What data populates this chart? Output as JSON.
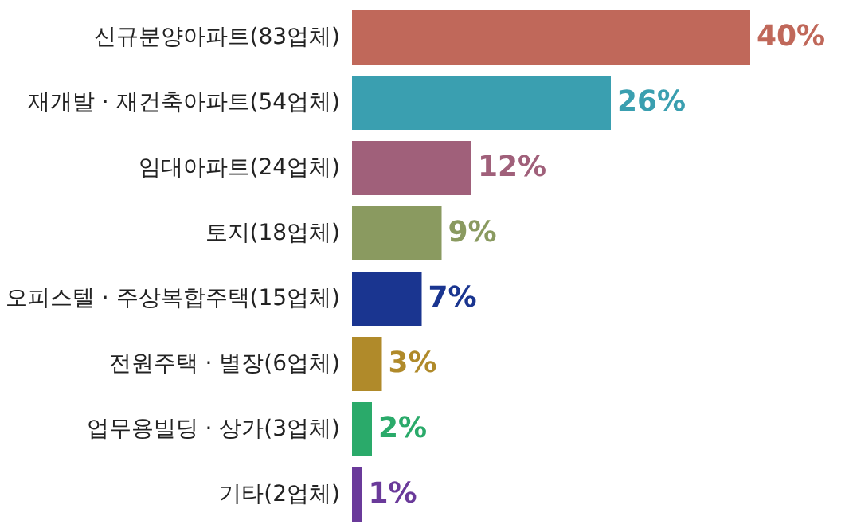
{
  "chart_data": {
    "type": "bar",
    "orientation": "horizontal",
    "categories": [
      "신규분양아파트(83업체)",
      "재개발 · 재건축아파트(54업체)",
      "임대아파트(24업체)",
      "토지(18업체)",
      "오피스텔 · 주상복합주택(15업체)",
      "전원주택 · 별장(6업체)",
      "업무용빌딩 · 상가(3업체)",
      "기타(2업체)"
    ],
    "values": [
      40,
      26,
      12,
      9,
      7,
      3,
      2,
      1
    ],
    "value_labels": [
      "40%",
      "26%",
      "12%",
      "9%",
      "7%",
      "3%",
      "2%",
      "1%"
    ],
    "colors": [
      "#c0685a",
      "#3a9fb0",
      "#a0607a",
      "#8a9a60",
      "#1a3590",
      "#b08a2a",
      "#2aaa6a",
      "#6a3a9a"
    ],
    "grid": false,
    "legend": false
  }
}
